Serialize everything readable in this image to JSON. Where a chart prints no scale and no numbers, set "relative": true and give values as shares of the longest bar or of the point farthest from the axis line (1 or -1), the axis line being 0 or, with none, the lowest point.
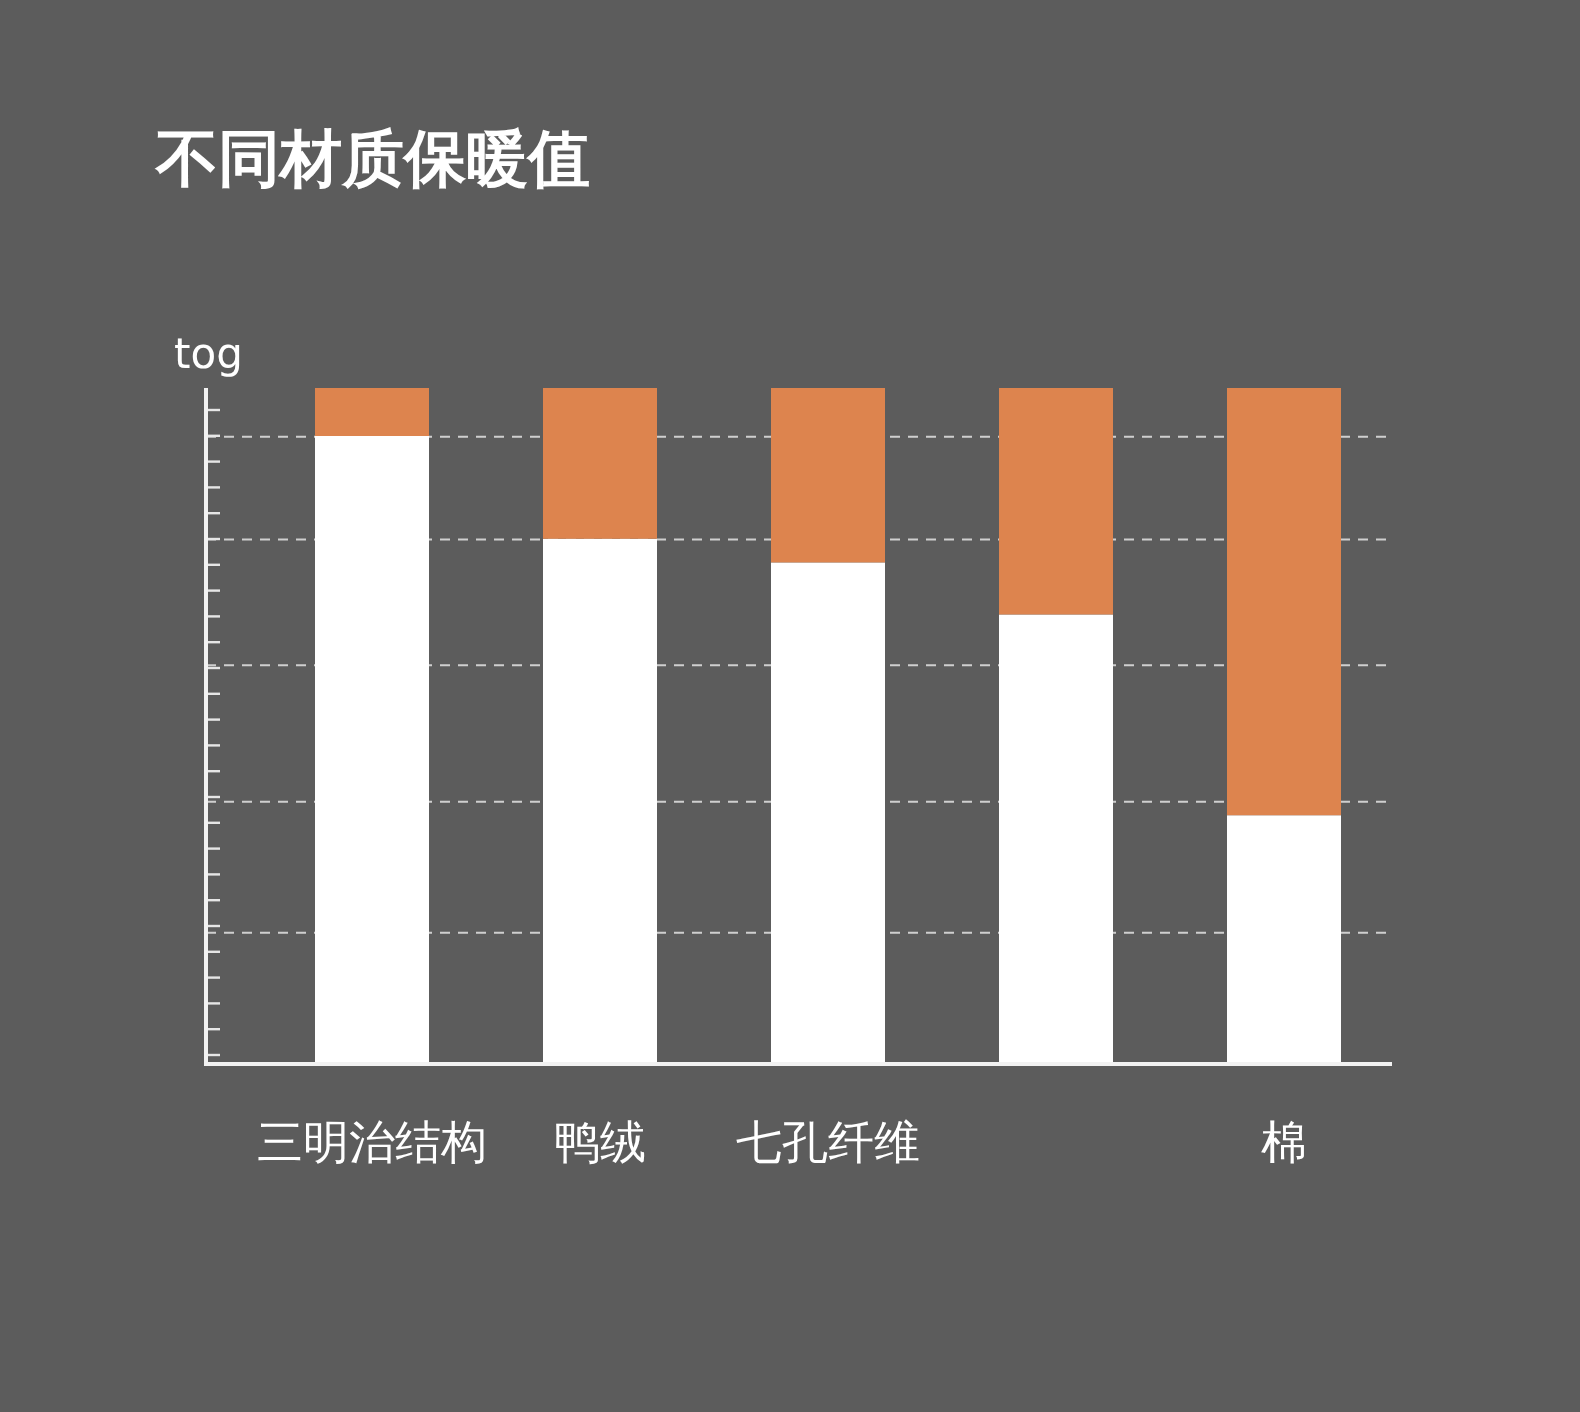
{
  "chart_data": {
    "type": "bar",
    "title": "不同材质保暖值",
    "ylabel": "tog",
    "relative": true,
    "stacked": true,
    "categories": [
      "三明治结构",
      "鸭绒",
      "七孔纤维",
      null,
      "棉"
    ],
    "series": [
      {
        "color": "#ffffff",
        "values": [
          0.929,
          0.777,
          0.742,
          0.665,
          0.368
        ]
      },
      {
        "color": "#dd844e",
        "values": [
          0.071,
          0.223,
          0.258,
          0.335,
          0.632
        ]
      }
    ],
    "ref_lines": [
      {
        "axis": "y",
        "value": 0.928,
        "color": "#cfcfcf",
        "line_style": "dashed"
      },
      {
        "axis": "y",
        "value": 0.776,
        "color": "#cfcfcf",
        "line_style": "dashed"
      },
      {
        "axis": "y",
        "value": 0.59,
        "color": "#cfcfcf",
        "line_style": "dashed"
      },
      {
        "axis": "y",
        "value": 0.388,
        "color": "#cfcfcf",
        "line_style": "dashed"
      },
      {
        "axis": "y",
        "value": 0.194,
        "color": "#cfcfcf",
        "line_style": "dashed"
      }
    ]
  }
}
